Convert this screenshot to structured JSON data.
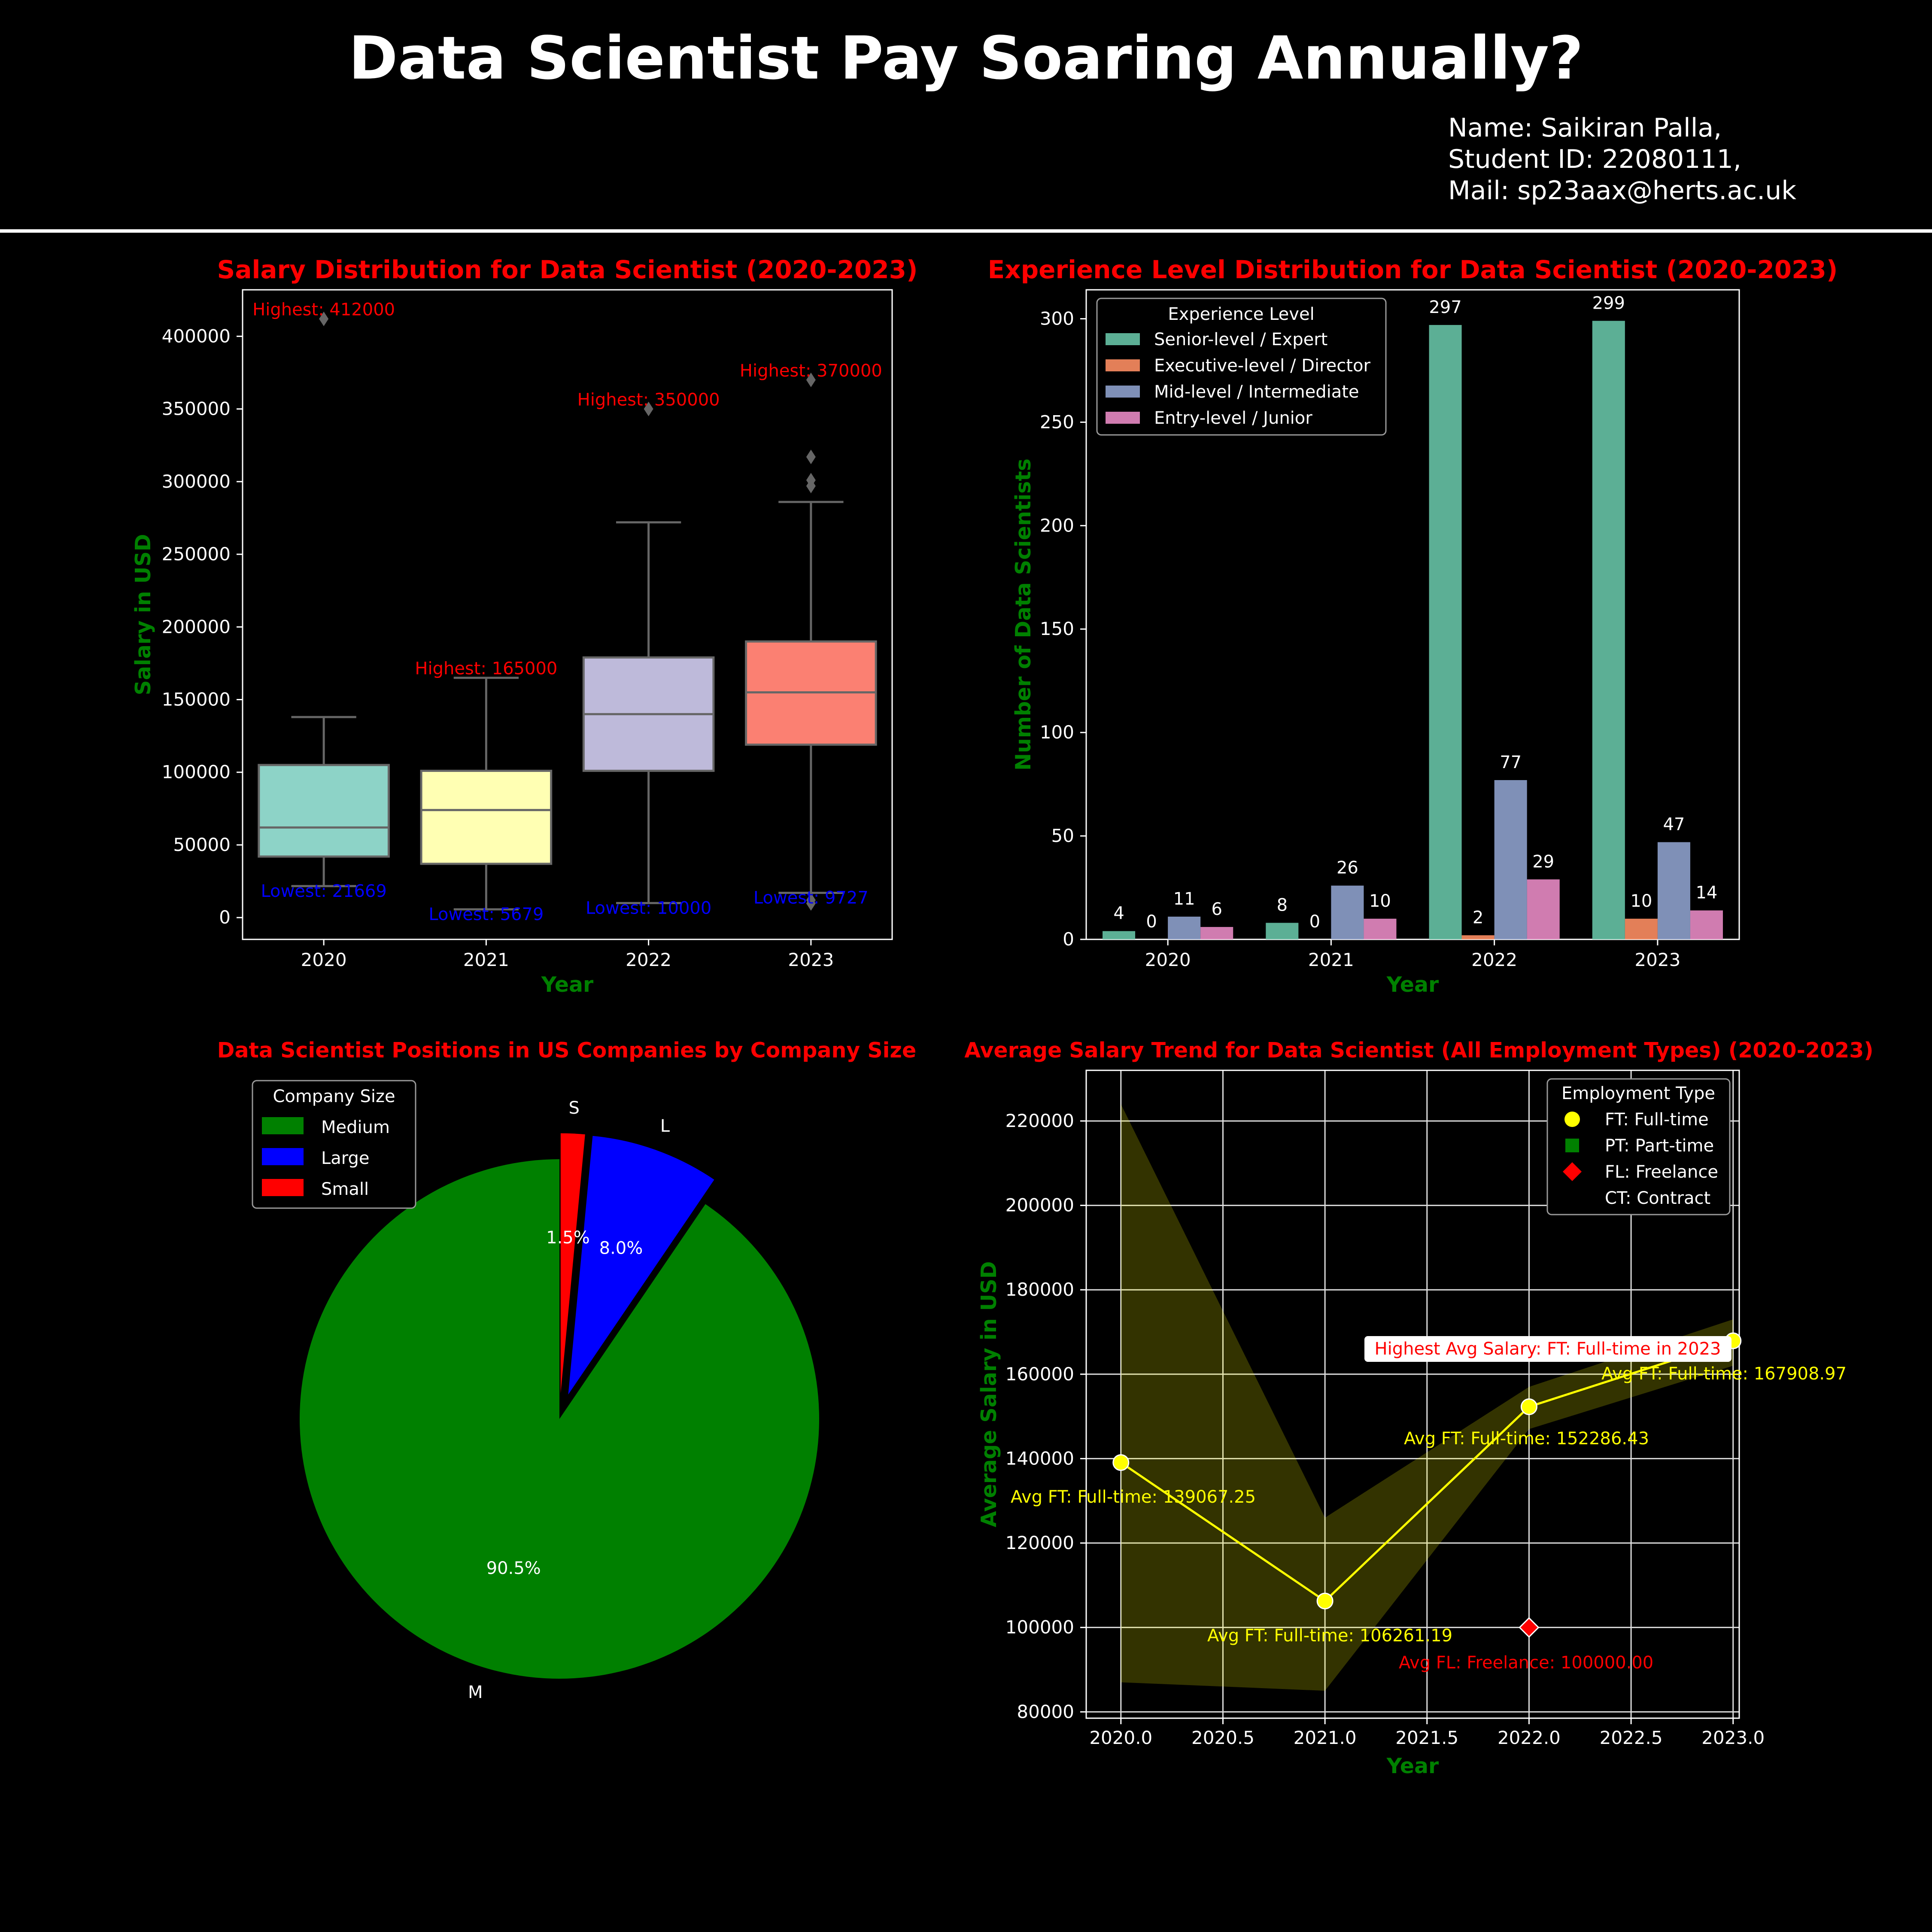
{
  "header": {
    "title": "Data Scientist Pay Soaring Annually?",
    "author_name": "Name: Saikiran Palla,",
    "student_id": "Student ID: 22080111,",
    "mail": "Mail: sp23aax@herts.ac.uk"
  },
  "colors": {
    "background": "#000000",
    "title_red": "#ff0000",
    "axis_green": "#008000"
  },
  "chart_data": [
    {
      "type": "box",
      "title": "Salary Distribution for Data Scientist (2020-2023)",
      "xlabel": "Year",
      "ylabel": "Salary in USD",
      "ylim": [
        -15000,
        432000
      ],
      "yticks": [
        0,
        50000,
        100000,
        150000,
        200000,
        250000,
        300000,
        350000,
        400000
      ],
      "categories": [
        "2020",
        "2021",
        "2022",
        "2023"
      ],
      "box_colors": [
        "#8dd3c7",
        "#ffffb3",
        "#bebada",
        "#fb8072"
      ],
      "boxes": [
        {
          "whisker_low": 21669,
          "q1": 42000,
          "median": 62000,
          "q3": 105000,
          "whisker_high": 138000,
          "outliers": [
            412000
          ]
        },
        {
          "whisker_low": 5679,
          "q1": 37000,
          "median": 74000,
          "q3": 101000,
          "whisker_high": 165000,
          "outliers": []
        },
        {
          "whisker_low": 10000,
          "q1": 101000,
          "median": 140000,
          "q3": 179000,
          "whisker_high": 272000,
          "outliers": [
            350000
          ]
        },
        {
          "whisker_low": 17000,
          "q1": 119000,
          "median": 155000,
          "q3": 190000,
          "whisker_high": 286000,
          "outliers": [
            370000,
            317000,
            301000,
            297000,
            9727,
            12000
          ]
        }
      ],
      "annotations_high": [
        "Highest: 412000",
        "Highest: 165000",
        "Highest: 350000",
        "Highest: 370000"
      ],
      "annotations_low": [
        "Lowest: 21669",
        "Lowest: 5679",
        "Lowest: 10000",
        "Lowest: 9727"
      ]
    },
    {
      "type": "bar",
      "title": "Experience Level Distribution for Data Scientist (2020-2023)",
      "xlabel": "Year",
      "ylabel": "Number of Data Scientists",
      "ylim": [
        0,
        314
      ],
      "yticks": [
        0,
        50,
        100,
        150,
        200,
        250,
        300
      ],
      "categories": [
        "2020",
        "2021",
        "2022",
        "2023"
      ],
      "legend_title": "Experience Level",
      "legend_position": "top-left",
      "series": [
        {
          "name": "Senior-level / Expert",
          "color": "#66c2a5",
          "values": [
            4,
            8,
            297,
            299
          ]
        },
        {
          "name": "Executive-level / Director",
          "color": "#fc8d62",
          "values": [
            0,
            0,
            2,
            10
          ]
        },
        {
          "name": "Mid-level / Intermediate",
          "color": "#8da0cb",
          "values": [
            11,
            26,
            77,
            47
          ]
        },
        {
          "name": "Entry-level / Junior",
          "color": "#e78ac3",
          "values": [
            6,
            10,
            29,
            14
          ]
        }
      ]
    },
    {
      "type": "pie",
      "title": "Data Scientist Positions in US Companies by Company Size",
      "legend_title": "Company Size",
      "legend_position": "top-left",
      "slices": [
        {
          "label": "M",
          "name": "Medium",
          "value": 90.5,
          "pct": "90.5%",
          "color": "#008000"
        },
        {
          "label": "L",
          "name": "Large",
          "value": 8.0,
          "pct": "8.0%",
          "color": "#0000ff"
        },
        {
          "label": "S",
          "name": "Small",
          "value": 1.5,
          "pct": "1.5%",
          "color": "#ff0000"
        }
      ]
    },
    {
      "type": "line",
      "title": "Average Salary Trend for Data Scientist (All Employment Types) (2020-2023)",
      "xlabel": "Year",
      "ylabel": "Average Salary in USD",
      "xlim": [
        2019.83,
        2023.03
      ],
      "ylim": [
        78500,
        232000
      ],
      "xticks": [
        "2020.0",
        "2020.5",
        "2021.0",
        "2021.5",
        "2022.0",
        "2022.5",
        "2023.0"
      ],
      "yticks": [
        80000,
        100000,
        120000,
        140000,
        160000,
        180000,
        200000,
        220000
      ],
      "grid": true,
      "legend_title": "Employment Type",
      "legend_position": "top-right",
      "legend": [
        {
          "name": "FT: Full-time",
          "color": "#ffff00",
          "marker": "circle"
        },
        {
          "name": "PT: Part-time",
          "color": "#008000",
          "marker": "square"
        },
        {
          "name": "FL: Freelance",
          "color": "#ff0000",
          "marker": "diamond"
        },
        {
          "name": "CT: Contract",
          "color": "#000000",
          "marker": "triangle"
        }
      ],
      "series": [
        {
          "name": "FT: Full-time",
          "color": "#ffff00",
          "x": [
            2020,
            2021,
            2022,
            2023
          ],
          "y": [
            139067.25,
            106261.19,
            152286.43,
            167908.97
          ],
          "band_low": [
            87000,
            85000,
            147000,
            162000
          ],
          "band_high": [
            224000,
            126000,
            157000,
            173000
          ]
        },
        {
          "name": "FL: Freelance",
          "color": "#ff0000",
          "x": [
            2022
          ],
          "y": [
            100000.0
          ]
        }
      ],
      "annotations_ft": [
        "Avg FT: Full-time: 139067.25",
        "Avg FT: Full-time: 106261.19",
        "Avg FT: Full-time: 152286.43",
        "Avg FT: Full-time: 167908.97"
      ],
      "annotation_fl": "Avg FL: Freelance: 100000.00",
      "highlight": "Highest Avg Salary: FT: Full-time in 2023"
    }
  ]
}
